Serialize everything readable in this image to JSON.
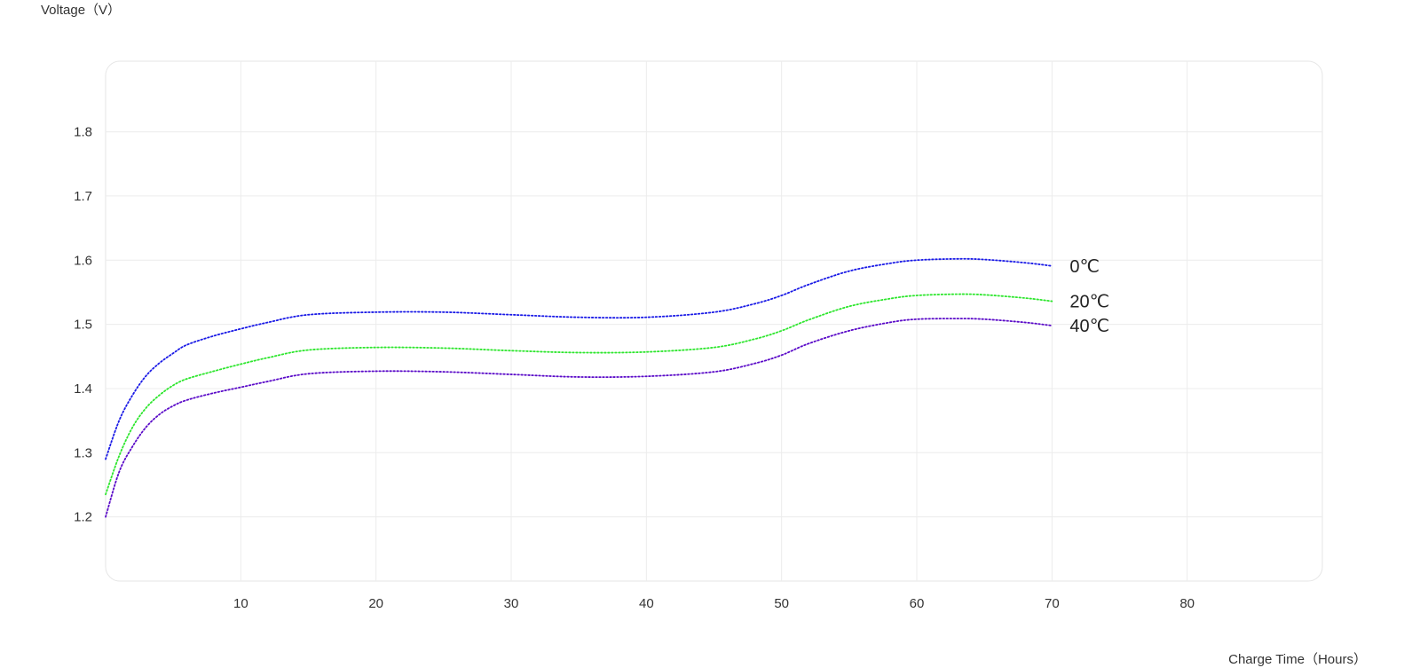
{
  "chart_data": {
    "type": "line",
    "title": "",
    "ylabel": "Voltage（V）",
    "xlabel": "Charge Time（Hours）",
    "xlim": [
      0,
      90
    ],
    "ylim": [
      1.1,
      1.91
    ],
    "x_ticks": [
      10,
      20,
      30,
      40,
      50,
      60,
      70,
      80
    ],
    "y_ticks": [
      1.2,
      1.3,
      1.4,
      1.5,
      1.6,
      1.7,
      1.8
    ],
    "x_tick_labels": [
      "10",
      "20",
      "30",
      "40",
      "50",
      "60",
      "70",
      "80"
    ],
    "y_tick_labels": [
      "1.2",
      "1.3",
      "1.4",
      "1.5",
      "1.6",
      "1.7",
      "1.8"
    ],
    "grid": true,
    "line_style": "dotted",
    "series": [
      {
        "name": "0℃",
        "color": "#1a1ae6",
        "x": [
          0,
          1,
          2,
          3,
          4,
          5,
          6,
          8,
          10,
          12,
          15,
          20,
          25,
          30,
          35,
          40,
          45,
          48,
          50,
          52,
          55,
          58,
          60,
          63,
          65,
          68,
          70
        ],
        "y": [
          1.29,
          1.35,
          1.39,
          1.42,
          1.44,
          1.455,
          1.468,
          1.482,
          1.493,
          1.503,
          1.515,
          1.519,
          1.519,
          1.515,
          1.511,
          1.511,
          1.519,
          1.532,
          1.545,
          1.562,
          1.583,
          1.595,
          1.6,
          1.602,
          1.601,
          1.596,
          1.591
        ]
      },
      {
        "name": "20℃",
        "color": "#2ee62e",
        "x": [
          0,
          1,
          2,
          3,
          4,
          5,
          6,
          8,
          10,
          12,
          15,
          20,
          25,
          30,
          35,
          40,
          45,
          48,
          50,
          52,
          55,
          58,
          60,
          63,
          65,
          68,
          70
        ],
        "y": [
          1.235,
          1.295,
          1.34,
          1.37,
          1.39,
          1.405,
          1.415,
          1.427,
          1.438,
          1.448,
          1.46,
          1.464,
          1.463,
          1.459,
          1.456,
          1.457,
          1.464,
          1.477,
          1.49,
          1.507,
          1.528,
          1.54,
          1.545,
          1.547,
          1.546,
          1.541,
          1.536
        ]
      },
      {
        "name": "40℃",
        "color": "#5a0ac8",
        "x": [
          0,
          1,
          2,
          3,
          4,
          5,
          6,
          8,
          10,
          12,
          15,
          20,
          25,
          30,
          35,
          40,
          45,
          48,
          50,
          52,
          55,
          58,
          60,
          63,
          65,
          68,
          70
        ],
        "y": [
          1.2,
          1.27,
          1.31,
          1.34,
          1.36,
          1.373,
          1.382,
          1.393,
          1.402,
          1.411,
          1.423,
          1.427,
          1.426,
          1.422,
          1.418,
          1.419,
          1.426,
          1.439,
          1.452,
          1.47,
          1.49,
          1.503,
          1.508,
          1.509,
          1.508,
          1.503,
          1.498
        ]
      }
    ]
  }
}
